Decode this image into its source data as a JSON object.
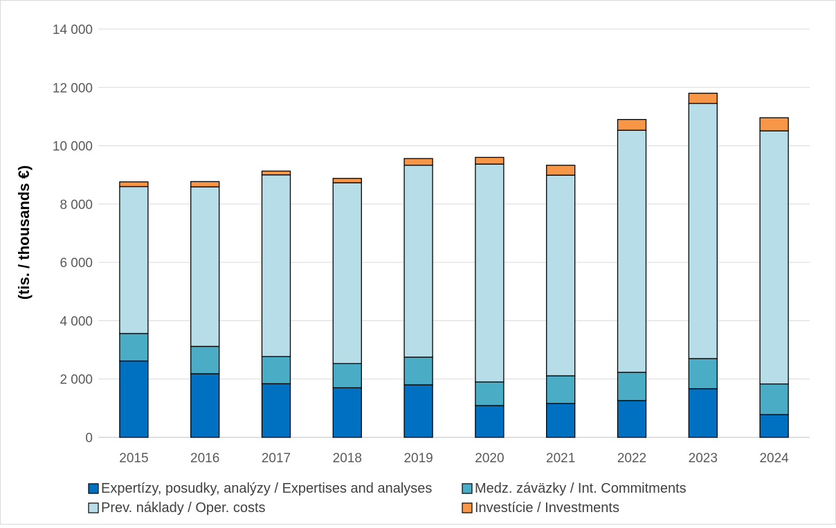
{
  "chart_data": {
    "type": "bar",
    "stacked": true,
    "title": "",
    "xlabel": "",
    "ylabel": "(tis. / thousands €)",
    "ylim": [
      0,
      14000
    ],
    "yticks": [
      0,
      2000,
      4000,
      6000,
      8000,
      10000,
      12000,
      14000
    ],
    "ytick_labels": [
      "0",
      "2 000",
      "4 000",
      "6 000",
      "8 000",
      "10 000",
      "12 000",
      "14 000"
    ],
    "grid": "horizontal",
    "legend_position": "bottom",
    "categories": [
      "2015",
      "2016",
      "2017",
      "2018",
      "2019",
      "2020",
      "2021",
      "2022",
      "2023",
      "2024"
    ],
    "series": [
      {
        "name": "Expertízy, posudky, analýzy / Expertises and analyses",
        "color": "#0070C0",
        "values": [
          2620,
          2180,
          1840,
          1700,
          1800,
          1090,
          1160,
          1260,
          1670,
          780
        ]
      },
      {
        "name": "Medz. záväzky / Int. Commitments",
        "color": "#4BACC6",
        "values": [
          940,
          940,
          930,
          830,
          950,
          810,
          950,
          970,
          1030,
          1050
        ]
      },
      {
        "name": "Prev. náklady / Oper. costs",
        "color": "#B7DEE8",
        "values": [
          5040,
          5470,
          6230,
          6200,
          6580,
          7470,
          6880,
          8300,
          8750,
          8680
        ]
      },
      {
        "name": "Investície / Investments",
        "color": "#F79646",
        "values": [
          160,
          180,
          130,
          150,
          230,
          230,
          340,
          370,
          350,
          450
        ]
      }
    ]
  }
}
